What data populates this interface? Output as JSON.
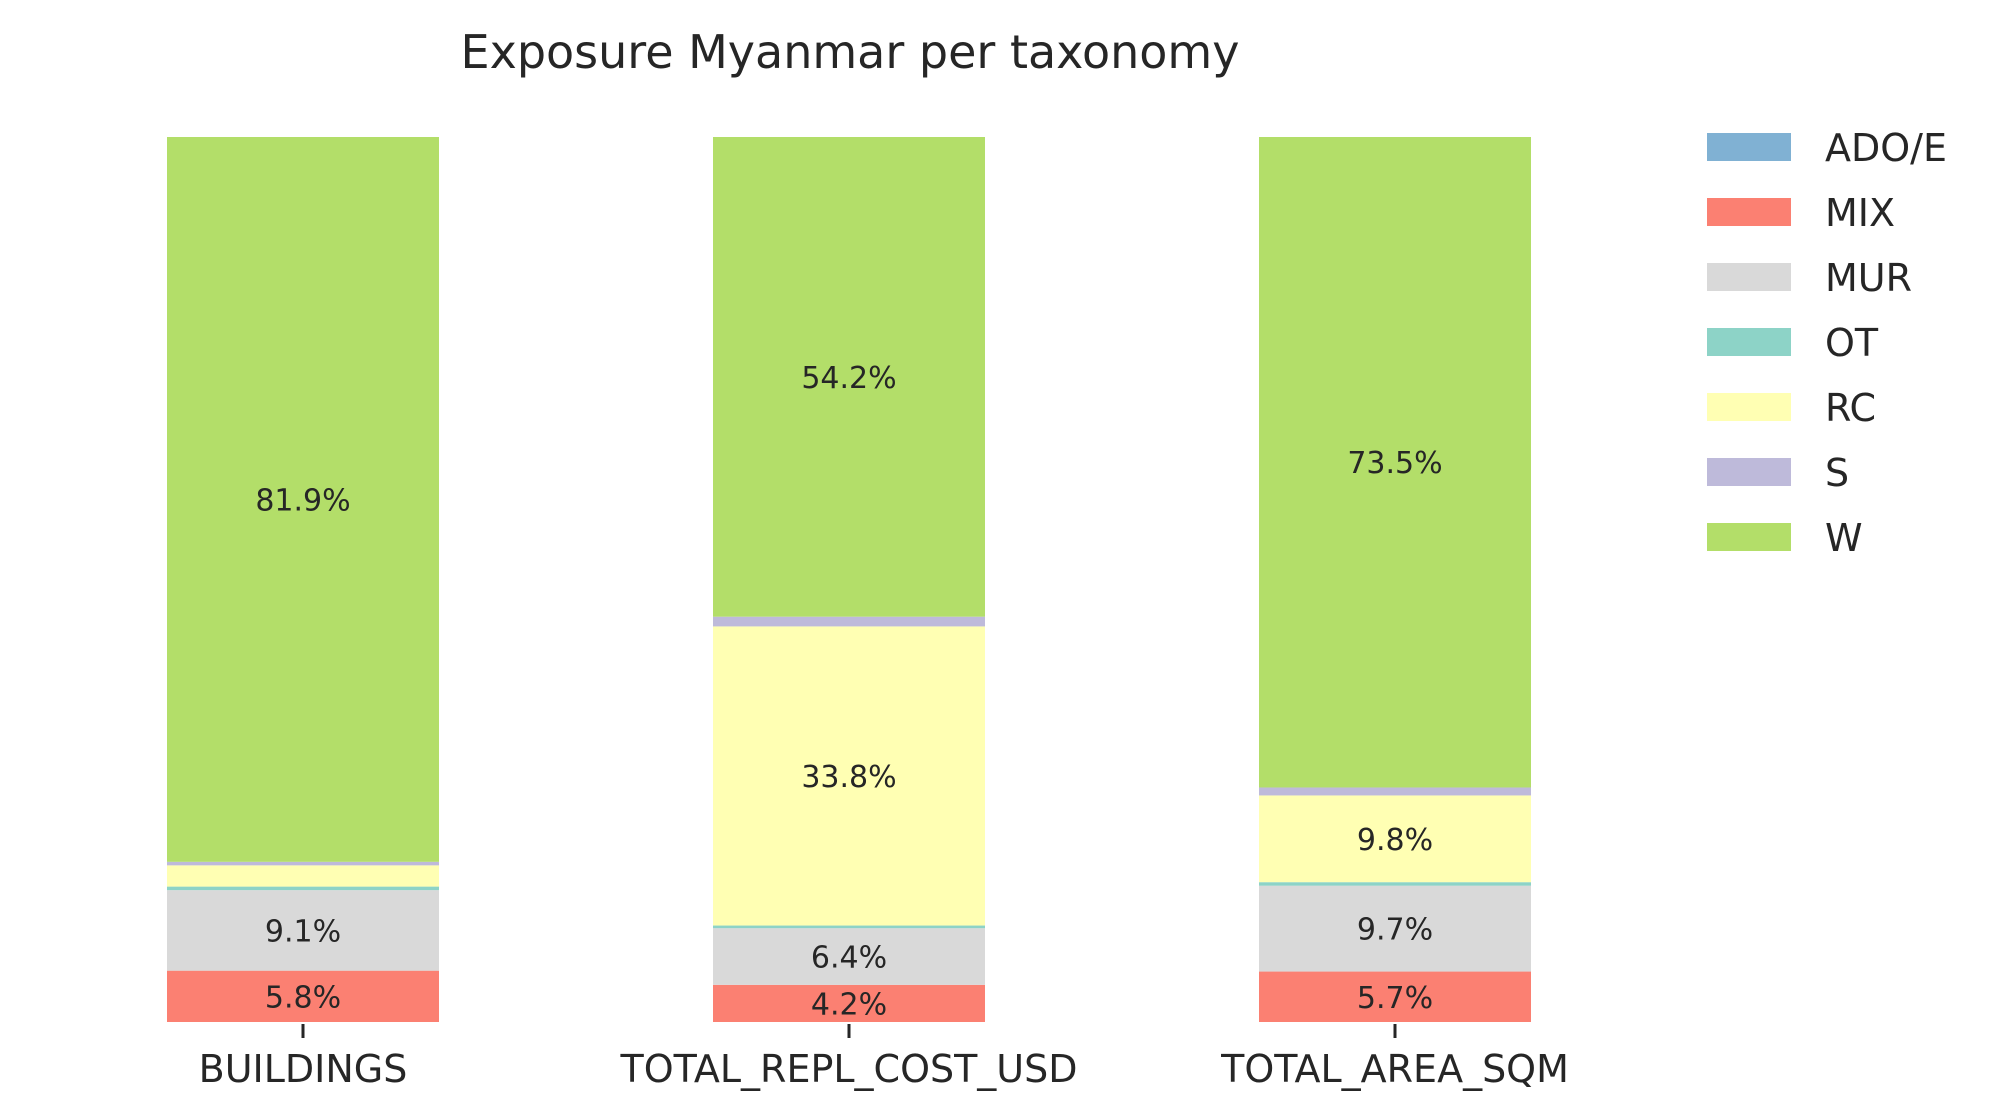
{
  "chart_data": {
    "type": "bar",
    "stacked": true,
    "normalized_percent": true,
    "title": "Exposure Myanmar per taxonomy",
    "xlabel": "",
    "ylabel": "",
    "ylim": [
      0,
      100
    ],
    "grid": false,
    "legend_position": "right",
    "categories": [
      "BUILDINGS",
      "TOTAL_REPL_COST_USD",
      "TOTAL_AREA_SQM"
    ],
    "series": [
      {
        "name": "ADO/E",
        "color": "#80b1d3",
        "values": [
          0.0,
          0.0,
          0.0
        ],
        "labels": [
          "",
          "",
          ""
        ]
      },
      {
        "name": "MIX",
        "color": "#fb8072",
        "values": [
          5.8,
          4.2,
          5.7
        ],
        "labels": [
          "5.8%",
          "4.2%",
          "5.7%"
        ]
      },
      {
        "name": "MUR",
        "color": "#d9d9d9",
        "values": [
          9.1,
          6.4,
          9.7
        ],
        "labels": [
          "9.1%",
          "6.4%",
          "9.7%"
        ]
      },
      {
        "name": "OT",
        "color": "#8dd3c7",
        "values": [
          0.4,
          0.3,
          0.4
        ],
        "labels": [
          "",
          "",
          ""
        ]
      },
      {
        "name": "RC",
        "color": "#ffffb3",
        "values": [
          2.4,
          33.8,
          9.8
        ],
        "labels": [
          "",
          "33.8%",
          "9.8%"
        ]
      },
      {
        "name": "S",
        "color": "#bebada",
        "values": [
          0.4,
          1.1,
          0.9
        ],
        "labels": [
          "",
          "",
          ""
        ]
      },
      {
        "name": "W",
        "color": "#b3de69",
        "values": [
          81.9,
          54.2,
          73.5
        ],
        "labels": [
          "81.9%",
          "54.2%",
          "73.5%"
        ]
      }
    ]
  }
}
